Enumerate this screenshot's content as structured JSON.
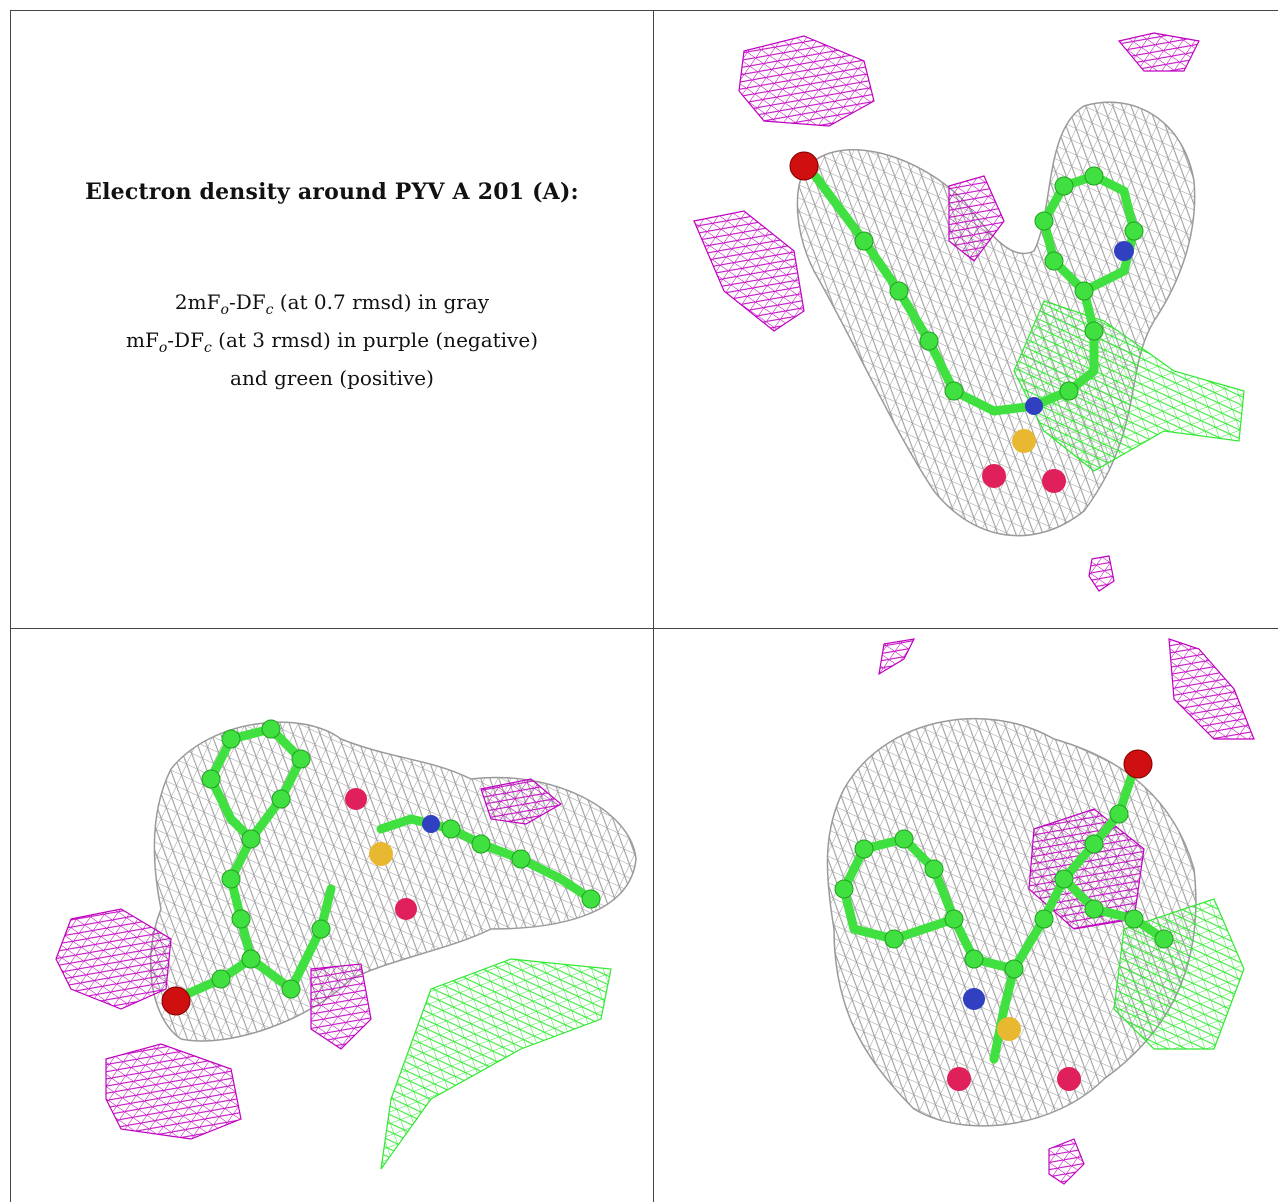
{
  "title": "Electron density around PYV A 201 (A):",
  "legend": {
    "line1_prefix": "2mF",
    "line1_sub1": "o",
    "line1_mid": "-DF",
    "line1_sub2": "c",
    "line1_suffix": " (at 0.7 rmsd) in gray",
    "line2_prefix": "mF",
    "line2_sub1": "o",
    "line2_mid": "-DF",
    "line2_sub2": "c",
    "line2_suffix": " (at 3 rmsd) in purple (negative)",
    "line3": "and green (positive)"
  },
  "colors": {
    "gray_mesh": "#9a9a9a",
    "purple_mesh": "#c000c0",
    "green_mesh": "#30e830",
    "carbon": "#40e040",
    "oxygen_red": "#d01010",
    "oxygen_pink": "#e0205a",
    "sulfur": "#e8b830",
    "nitrogen": "#3040c0"
  },
  "panels": [
    "view-top-right",
    "view-bottom-left",
    "view-bottom-right"
  ]
}
